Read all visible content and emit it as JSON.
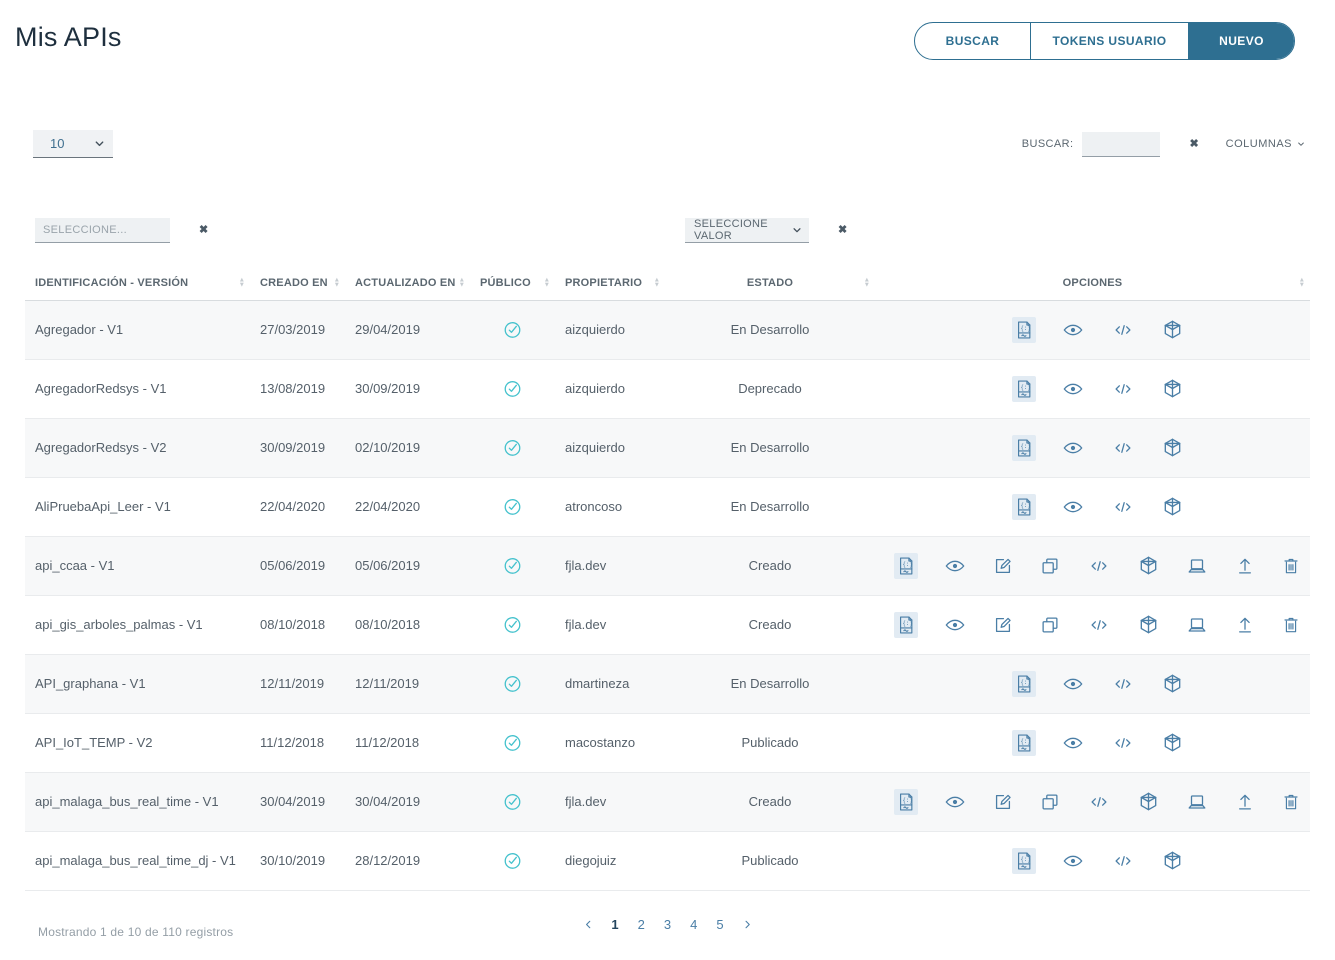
{
  "title": "Mis APIs",
  "toolbar": {
    "buttons": [
      {
        "label": "BUSCAR",
        "active": false
      },
      {
        "label": "TOKENS USUARIO",
        "active": false
      },
      {
        "label": "NUEVO",
        "active": true
      }
    ]
  },
  "controls": {
    "page_size": "10",
    "search_label": "BUSCAR:",
    "search_value": "",
    "columns_label": "COLUMNAS"
  },
  "filters": {
    "field_placeholder": "SELECCIONE...",
    "value_selected": "SELECCIONE VALOR"
  },
  "table": {
    "columns": [
      {
        "label": "IDENTIFICACIÓN - VERSIÓN",
        "align": "left"
      },
      {
        "label": "CREADO EN",
        "align": "left"
      },
      {
        "label": "ACTUALIZADO EN",
        "align": "left"
      },
      {
        "label": "PÚBLICO",
        "align": "left"
      },
      {
        "label": "PROPIETARIO",
        "align": "left"
      },
      {
        "label": "ESTADO",
        "align": "center"
      },
      {
        "label": "OPCIONES",
        "align": "center"
      }
    ],
    "rows": [
      {
        "id": "Agregador - V1",
        "created": "27/03/2019",
        "updated": "29/04/2019",
        "public": true,
        "owner": "aizquierdo",
        "status": "En Desarrollo",
        "options": "basic"
      },
      {
        "id": "AgregadorRedsys - V1",
        "created": "13/08/2019",
        "updated": "30/09/2019",
        "public": true,
        "owner": "aizquierdo",
        "status": "Deprecado",
        "options": "basic"
      },
      {
        "id": "AgregadorRedsys - V2",
        "created": "30/09/2019",
        "updated": "02/10/2019",
        "public": true,
        "owner": "aizquierdo",
        "status": "En Desarrollo",
        "options": "basic"
      },
      {
        "id": "AliPruebaApi_Leer - V1",
        "created": "22/04/2020",
        "updated": "22/04/2020",
        "public": true,
        "owner": "atroncoso",
        "status": "En Desarrollo",
        "options": "basic"
      },
      {
        "id": "api_ccaa - V1",
        "created": "05/06/2019",
        "updated": "05/06/2019",
        "public": true,
        "owner": "fjla.dev",
        "status": "Creado",
        "options": "full"
      },
      {
        "id": "api_gis_arboles_palmas - V1",
        "created": "08/10/2018",
        "updated": "08/10/2018",
        "public": true,
        "owner": "fjla.dev",
        "status": "Creado",
        "options": "full"
      },
      {
        "id": "API_graphana - V1",
        "created": "12/11/2019",
        "updated": "12/11/2019",
        "public": true,
        "owner": "dmartineza",
        "status": "En Desarrollo",
        "options": "basic"
      },
      {
        "id": "API_IoT_TEMP - V2",
        "created": "11/12/2018",
        "updated": "11/12/2018",
        "public": true,
        "owner": "macostanzo",
        "status": "Publicado",
        "options": "basic"
      },
      {
        "id": "api_malaga_bus_real_time - V1",
        "created": "30/04/2019",
        "updated": "30/04/2019",
        "public": true,
        "owner": "fjla.dev",
        "status": "Creado",
        "options": "full"
      },
      {
        "id": "api_malaga_bus_real_time_dj - V1",
        "created": "30/10/2019",
        "updated": "28/12/2019",
        "public": true,
        "owner": "diegojuiz",
        "status": "Publicado",
        "options": "basic"
      }
    ]
  },
  "options_icons": {
    "basic": [
      "api-doc-icon",
      "view-icon",
      "code-icon",
      "deploy-icon"
    ],
    "full": [
      "api-doc-icon",
      "view-icon",
      "edit-icon",
      "copy-icon",
      "code-icon",
      "deploy-icon",
      "device-icon",
      "upload-icon",
      "delete-icon"
    ]
  },
  "footer": {
    "summary": "Mostrando 1 de 10 de 110 registros",
    "pagination": {
      "pages": [
        "1",
        "2",
        "3",
        "4",
        "5"
      ],
      "current": "1"
    }
  },
  "colors": {
    "accent": "#2e6f91",
    "icon": "#4a7ea6",
    "check": "#45c2cd"
  }
}
